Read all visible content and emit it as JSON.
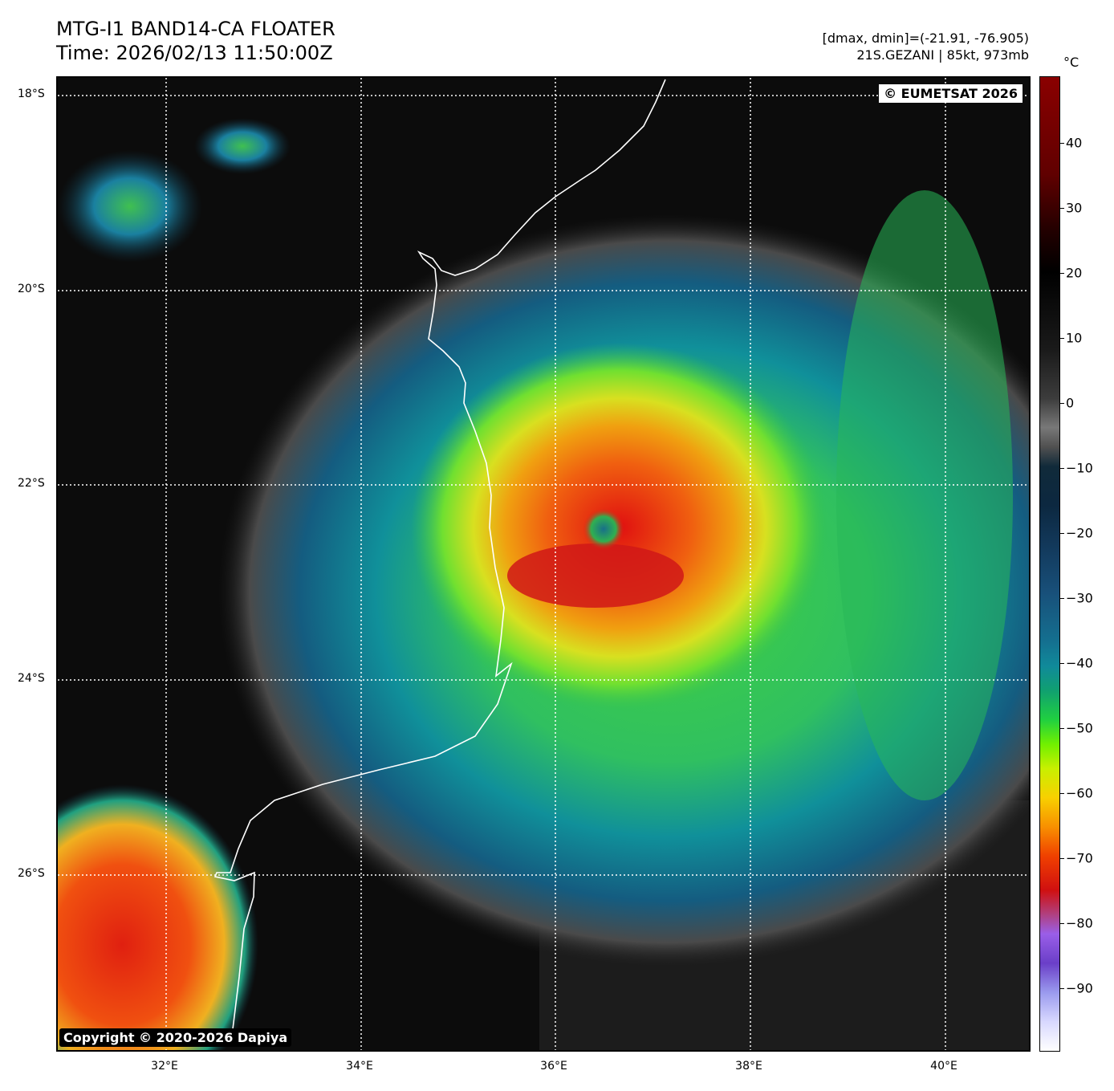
{
  "header": {
    "title_line1": "MTG-I1 BAND14-CA FLOATER",
    "title_line2": "Time: 2026/02/13 11:50:00Z",
    "dmax_dmin": "[dmax, dmin]=(-21.91, -76.905)",
    "storm_info": "21S.GEZANI | 85kt, 973mb"
  },
  "map": {
    "copyright_top": "© EUMETSAT 2026",
    "copyright_bottom": "Copyright © 2020-2026 Dapiya",
    "lat_labels": [
      "18°S",
      "20°S",
      "22°S",
      "24°S",
      "26°S"
    ],
    "lon_labels": [
      "32°E",
      "34°E",
      "36°E",
      "38°E",
      "40°E"
    ],
    "extent": {
      "lon_min": 30.9,
      "lon_max": 40.9,
      "lat_max": -17.8,
      "lat_min": -27.8
    },
    "storm_center": {
      "lon": 36.5,
      "lat": -22.5
    },
    "coastline_color": "#ffffff"
  },
  "colorbar": {
    "unit": "°C",
    "ticks": [
      "40",
      "30",
      "20",
      "10",
      "0",
      "−10",
      "−20",
      "−30",
      "−40",
      "−50",
      "−60",
      "−70",
      "−80",
      "−90"
    ],
    "range": [
      -100,
      50
    ]
  }
}
